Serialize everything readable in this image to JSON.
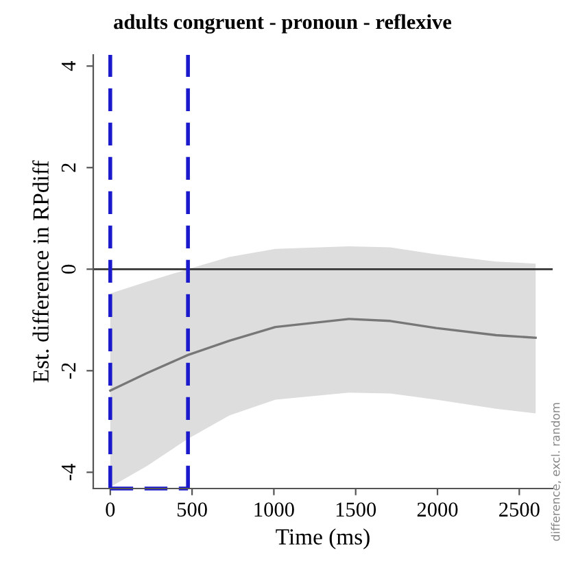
{
  "chart_data": {
    "type": "line",
    "title": "adults congruent - pronoun - reflexive",
    "xlabel": "Time (ms)",
    "ylabel": "Est. difference in RPdiff",
    "annotations": [
      "difference, excl. random"
    ],
    "xlim": [
      -104,
      2704
    ],
    "ylim": [
      -4.32,
      4.22
    ],
    "xticks": [
      0,
      500,
      1000,
      1500,
      2000,
      2500
    ],
    "yticks": [
      -4,
      -2,
      0,
      2,
      4
    ],
    "series": [
      {
        "color": "#777777",
        "x": [
          0,
          222,
          475,
          728,
          1009,
          1459,
          1712,
          1993,
          2358,
          2600
        ],
        "values": [
          -2.39,
          -2.05,
          -1.69,
          -1.41,
          -1.14,
          -0.98,
          -1.02,
          -1.16,
          -1.3,
          -1.35
        ],
        "lower": [
          -4.29,
          -3.88,
          -3.34,
          -2.88,
          -2.57,
          -2.43,
          -2.45,
          -2.57,
          -2.75,
          -2.84
        ],
        "upper": [
          -0.48,
          -0.25,
          0,
          0.24,
          0.4,
          0.45,
          0.43,
          0.29,
          0.15,
          0.11
        ]
      }
    ],
    "ref_lines": [
      {
        "axis": "y",
        "value": 0,
        "color": "#333333"
      },
      {
        "axis": "x",
        "value": 0,
        "color": "#1a1acc",
        "line_style": "dashed"
      },
      {
        "axis": "x",
        "value": 475,
        "color": "#1a1acc",
        "line_style": "dashed"
      }
    ],
    "grid": false,
    "marker": "none",
    "line_style": "solid"
  }
}
